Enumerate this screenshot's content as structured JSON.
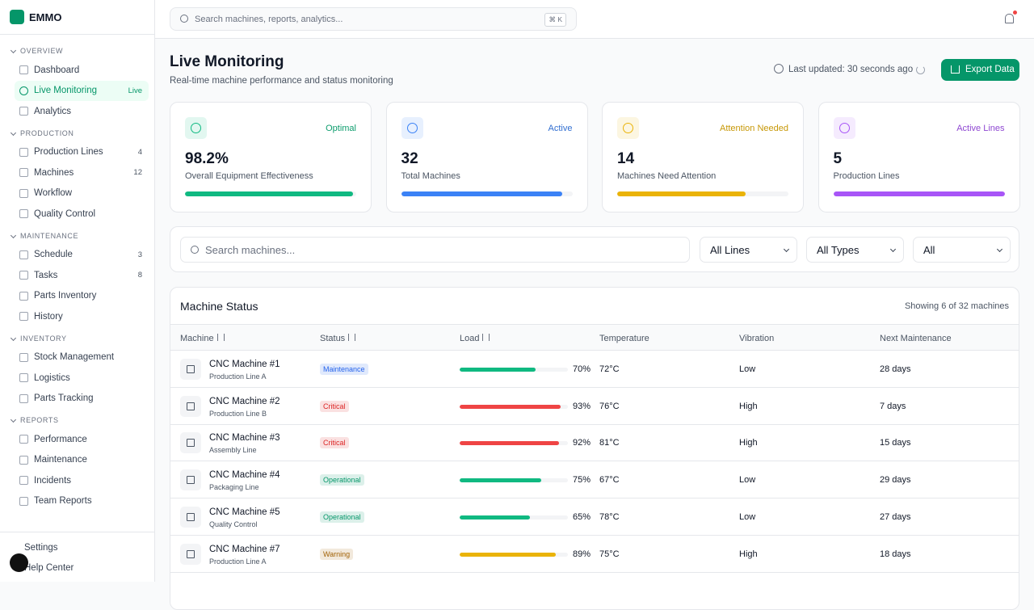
{
  "sidebar": {
    "brand": "EMMO",
    "sections": [
      {
        "title": "OVERVIEW",
        "items": [
          {
            "label": "Dashboard"
          },
          {
            "label": "Live Monitoring",
            "badge": "Live",
            "active": true
          },
          {
            "label": "Analytics"
          }
        ]
      },
      {
        "title": "PRODUCTION",
        "items": [
          {
            "label": "Production Lines",
            "badge": "4"
          },
          {
            "label": "Machines",
            "badge": "12"
          },
          {
            "label": "Workflow"
          },
          {
            "label": "Quality Control"
          }
        ]
      },
      {
        "title": "MAINTENANCE",
        "items": [
          {
            "label": "Schedule",
            "badge": "3"
          },
          {
            "label": "Tasks",
            "badge": "8"
          },
          {
            "label": "Parts Inventory"
          },
          {
            "label": "History"
          }
        ]
      },
      {
        "title": "INVENTORY",
        "items": [
          {
            "label": "Stock Management"
          },
          {
            "label": "Logistics"
          },
          {
            "label": "Parts Tracking"
          }
        ]
      },
      {
        "title": "REPORTS",
        "items": [
          {
            "label": "Performance"
          },
          {
            "label": "Maintenance"
          },
          {
            "label": "Incidents"
          },
          {
            "label": "Team Reports"
          }
        ]
      }
    ],
    "footer": [
      "Settings",
      "Help Center"
    ]
  },
  "topbar": {
    "search_placeholder": "Search machines, reports, analytics...",
    "shortcut": "⌘ K"
  },
  "header": {
    "title": "Live Monitoring",
    "subtitle": "Real-time machine performance and status monitoring",
    "last_updated": "Last updated: 30 seconds ago",
    "export": "Export Data"
  },
  "kpis": [
    {
      "status": "Optimal",
      "value": "98.2%",
      "label": "Overall Equipment Effectiveness",
      "progress": 98.2,
      "color": "#10b981"
    },
    {
      "status": "Active",
      "value": "32",
      "label": "Total Machines",
      "progress": 94,
      "color": "#3b82f6"
    },
    {
      "status": "Attention Needed",
      "value": "14",
      "label": "Machines Need Attention",
      "progress": 75,
      "color": "#eab308"
    },
    {
      "status": "Active Lines",
      "value": "5",
      "label": "Production Lines",
      "progress": 100,
      "color": "#a855f7"
    }
  ],
  "filters": {
    "search_placeholder": "Search machines...",
    "selects": [
      "All Lines",
      "All Types",
      "All"
    ]
  },
  "table": {
    "title": "Machine Status",
    "showing": "Showing 6 of 32 machines",
    "columns": [
      {
        "label": "Machine",
        "sortable": true
      },
      {
        "label": "Status",
        "sortable": true
      },
      {
        "label": "Load",
        "sortable": true
      },
      {
        "label": "Temperature"
      },
      {
        "label": "Vibration"
      },
      {
        "label": "Next Maintenance"
      }
    ],
    "rows": [
      {
        "name": "CNC Machine #1",
        "line": "Production Line A",
        "status": "Maintenance",
        "status_color": "#2563eb",
        "load": {
          "value": 70,
          "label": "70%"
        },
        "load_color": "#10b981",
        "temperature": "72°C",
        "vibration": "Low",
        "next_maintenance": "28 days"
      },
      {
        "name": "CNC Machine #2",
        "line": "Production Line B",
        "status": "Critical",
        "status_color": "#dc2626",
        "load": {
          "value": 93,
          "label": "93%"
        },
        "load_color": "#ef4444",
        "temperature": "76°C",
        "vibration": "High",
        "next_maintenance": "7 days"
      },
      {
        "name": "CNC Machine #3",
        "line": "Assembly Line",
        "status": "Critical",
        "status_color": "#dc2626",
        "load": {
          "value": 92,
          "label": "92%"
        },
        "load_color": "#ef4444",
        "temperature": "81°C",
        "vibration": "High",
        "next_maintenance": "15 days"
      },
      {
        "name": "CNC Machine #4",
        "line": "Packaging Line",
        "status": "Operational",
        "status_color": "#059669",
        "load": {
          "value": 75,
          "label": "75%"
        },
        "load_color": "#10b981",
        "temperature": "67°C",
        "vibration": "Low",
        "next_maintenance": "29 days"
      },
      {
        "name": "CNC Machine #5",
        "line": "Quality Control",
        "status": "Operational",
        "status_color": "#059669",
        "load": {
          "value": 65,
          "label": "65%"
        },
        "load_color": "#10b981",
        "temperature": "78°C",
        "vibration": "Low",
        "next_maintenance": "27 days"
      },
      {
        "name": "CNC Machine #7",
        "line": "Production Line A",
        "status": "Warning",
        "status_color": "#a16207",
        "load": {
          "value": 89,
          "label": "89%"
        },
        "load_color": "#eab308",
        "temperature": "75°C",
        "vibration": "High",
        "next_maintenance": "18 days"
      }
    ]
  }
}
